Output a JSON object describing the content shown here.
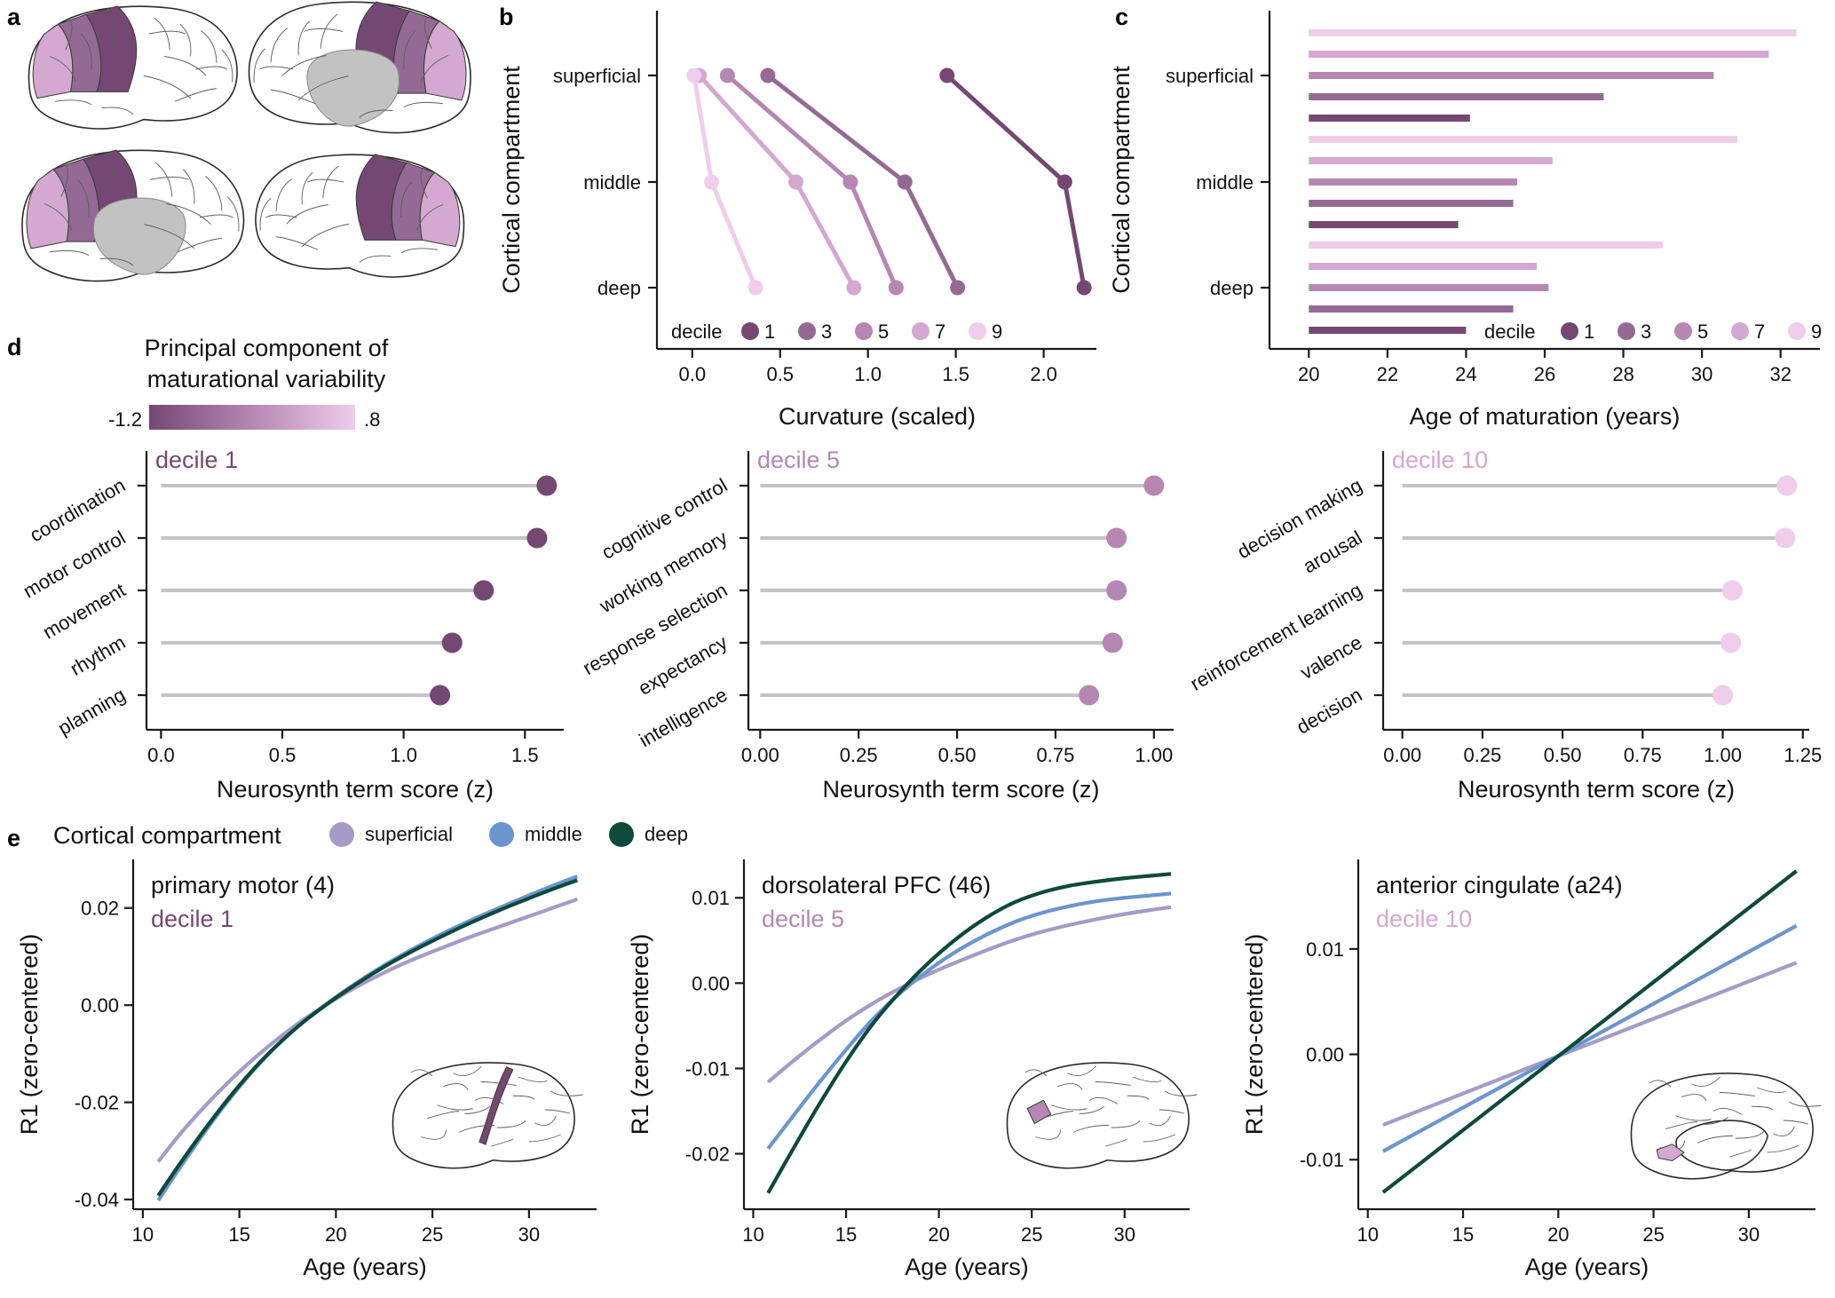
{
  "colors": {
    "dec1": "#744872",
    "dec3": "#946a94",
    "dec5": "#b687b2",
    "dec7": "#d4a8d0",
    "dec9": "#efcdeb",
    "superficial": "#a49bc7",
    "middle": "#6b95cf",
    "deep": "#0d4a3b",
    "stem": "#c4c4c4",
    "grey": "#bdbdbd"
  },
  "panel_labels": {
    "a": "a",
    "b": "b",
    "c": "c",
    "d": "d",
    "e": "e"
  },
  "panel_a": {
    "colorbar_title_line1": "Principal component of",
    "colorbar_title_line2": "maturational variability",
    "colorbar_min": "-1.2",
    "colorbar_max": ".8"
  },
  "chart_data": [
    {
      "id": "b",
      "type": "line",
      "xlabel": "Curvature (scaled)",
      "ylabel": "Cortical compartment",
      "categories": [
        "superficial",
        "middle",
        "deep"
      ],
      "xlim": [
        -0.1,
        2.3
      ],
      "xticks": [
        0.0,
        0.5,
        1.0,
        1.5,
        2.0
      ],
      "xtick_labels": [
        "0.0",
        "0.5",
        "1.0",
        "1.5",
        "2.0"
      ],
      "legend_title": "decile",
      "series": [
        {
          "name": "1",
          "values": [
            1.45,
            2.12,
            2.23
          ]
        },
        {
          "name": "3",
          "values": [
            0.43,
            1.21,
            1.51
          ]
        },
        {
          "name": "5",
          "values": [
            0.2,
            0.9,
            1.16
          ]
        },
        {
          "name": "7",
          "values": [
            0.04,
            0.59,
            0.92
          ]
        },
        {
          "name": "9",
          "values": [
            0.01,
            0.11,
            0.36
          ]
        }
      ]
    },
    {
      "id": "c",
      "type": "bar",
      "xlabel": "Age of maturation (years)",
      "ylabel": "Cortical compartment",
      "categories": [
        "superficial",
        "middle",
        "deep"
      ],
      "xlim": [
        19,
        33
      ],
      "xticks": [
        20,
        22,
        24,
        26,
        28,
        30,
        32
      ],
      "legend_title": "decile",
      "bar_base": 20,
      "series": [
        {
          "name": "9",
          "values": [
            32.4,
            30.9,
            29.0
          ]
        },
        {
          "name": "7",
          "values": [
            31.7,
            26.2,
            25.8
          ]
        },
        {
          "name": "5",
          "values": [
            30.3,
            25.3,
            26.1
          ]
        },
        {
          "name": "3",
          "values": [
            27.5,
            25.2,
            25.2
          ]
        },
        {
          "name": "1",
          "values": [
            24.1,
            23.8,
            24.0
          ]
        }
      ]
    },
    {
      "id": "d1",
      "type": "lollipop",
      "title": "decile 1",
      "xlabel": "Neurosynth term score (z)",
      "terms": [
        "coordination",
        "motor control",
        "movement",
        "rhythm",
        "planning"
      ],
      "values": [
        1.59,
        1.55,
        1.33,
        1.2,
        1.15
      ],
      "xlim": [
        -0.06,
        1.66
      ],
      "xticks": [
        0.0,
        0.5,
        1.0,
        1.5
      ],
      "xtick_labels": [
        "0.0",
        "0.5",
        "1.0",
        "1.5"
      ]
    },
    {
      "id": "d5",
      "type": "lollipop",
      "title": "decile 5",
      "xlabel": "Neurosynth term score (z)",
      "terms": [
        "cognitive control",
        "working memory",
        "response selection",
        "expectancy",
        "intelligence"
      ],
      "values": [
        1.0,
        0.905,
        0.905,
        0.895,
        0.835
      ],
      "xlim": [
        -0.03,
        1.05
      ],
      "xticks": [
        0.0,
        0.25,
        0.5,
        0.75,
        1.0
      ],
      "xtick_labels": [
        "0.00",
        "0.25",
        "0.50",
        "0.75",
        "1.00"
      ]
    },
    {
      "id": "d10",
      "type": "lollipop",
      "title": "decile 10",
      "xlabel": "Neurosynth term score (z)",
      "terms": [
        "decision making",
        "arousal",
        "reinforcement learning",
        "valence",
        "decision"
      ],
      "values": [
        1.2,
        1.195,
        1.03,
        1.025,
        1.0
      ],
      "xlim": [
        -0.06,
        1.27
      ],
      "xticks": [
        0.0,
        0.25,
        0.5,
        0.75,
        1.0,
        1.25
      ],
      "xtick_labels": [
        "0.00",
        "0.25",
        "0.50",
        "0.75",
        "1.00",
        "1.25"
      ]
    },
    {
      "id": "e1",
      "type": "line",
      "title": "primary motor (4)",
      "subtitle": "decile 1",
      "xlabel": "Age (years)",
      "ylabel": "R1 (zero-centered)",
      "xlim": [
        9.5,
        33.5
      ],
      "ylim": [
        -0.042,
        0.03
      ],
      "xticks": [
        10,
        15,
        20,
        25,
        30
      ],
      "yticks": [
        -0.04,
        -0.02,
        0.0,
        0.02
      ],
      "ytick_labels": [
        "-0.04",
        "-0.02",
        "0.00",
        "0.02"
      ],
      "x": [
        10.8,
        12,
        13.5,
        15,
        16.5,
        18,
        19.5,
        21,
        22.5,
        24,
        25.5,
        27,
        28.5,
        30,
        31.5,
        32.5
      ],
      "series": [
        {
          "name": "deep",
          "values": [
            -0.0392,
            -0.0322,
            -0.024,
            -0.0165,
            -0.01,
            -0.0045,
            0.0001,
            0.0042,
            0.0079,
            0.0112,
            0.0142,
            0.017,
            0.0196,
            0.022,
            0.0243,
            0.0257
          ]
        },
        {
          "name": "middle",
          "values": [
            -0.0402,
            -0.033,
            -0.0245,
            -0.0168,
            -0.0101,
            -0.0045,
            0.0002,
            0.0044,
            0.0082,
            0.0116,
            0.0147,
            0.0175,
            0.0201,
            0.0226,
            0.025,
            0.0265
          ]
        },
        {
          "name": "superficial",
          "values": [
            -0.0322,
            -0.0262,
            -0.0196,
            -0.0137,
            -0.0085,
            -0.0039,
            0.0001,
            0.0036,
            0.0067,
            0.0094,
            0.0118,
            0.0141,
            0.0162,
            0.0183,
            0.0204,
            0.0218
          ]
        }
      ]
    },
    {
      "id": "e5",
      "type": "line",
      "title": "dorsolateral PFC (46)",
      "subtitle": "decile 5",
      "xlabel": "Age (years)",
      "ylabel": "R1 (zero-centered)",
      "xlim": [
        9.5,
        33.5
      ],
      "ylim": [
        -0.0265,
        0.0145
      ],
      "xticks": [
        10,
        15,
        20,
        25,
        30
      ],
      "yticks": [
        -0.02,
        -0.01,
        0.0,
        0.01
      ],
      "ytick_labels": [
        "-0.02",
        "-0.01",
        "0.00",
        "0.01"
      ],
      "x": [
        10.8,
        12,
        13.5,
        15,
        16.5,
        18,
        19.5,
        21,
        22.5,
        24,
        25.5,
        27,
        28.5,
        30,
        31.5,
        32.5
      ],
      "series": [
        {
          "name": "deep",
          "values": [
            -0.0246,
            -0.02,
            -0.0144,
            -0.0092,
            -0.0046,
            -0.0008,
            0.0025,
            0.0053,
            0.0076,
            0.0094,
            0.0106,
            0.0114,
            0.0119,
            0.0123,
            0.0126,
            0.0128
          ]
        },
        {
          "name": "middle",
          "values": [
            -0.0194,
            -0.016,
            -0.0118,
            -0.0078,
            -0.0041,
            -0.001,
            0.0016,
            0.0038,
            0.0056,
            0.0071,
            0.0082,
            0.009,
            0.0096,
            0.01,
            0.0103,
            0.0105
          ]
        },
        {
          "name": "superficial",
          "values": [
            -0.0116,
            -0.0094,
            -0.0068,
            -0.0044,
            -0.0023,
            -0.0005,
            0.0011,
            0.0025,
            0.0038,
            0.005,
            0.006,
            0.0068,
            0.0075,
            0.0081,
            0.0086,
            0.0089
          ]
        }
      ]
    },
    {
      "id": "e10",
      "type": "line",
      "title": "anterior cingulate (a24)",
      "subtitle": "decile 10",
      "xlabel": "Age (years)",
      "ylabel": "R1 (zero-centered)",
      "xlim": [
        9.5,
        33.5
      ],
      "ylim": [
        -0.0147,
        0.0185
      ],
      "xticks": [
        10,
        15,
        20,
        25,
        30
      ],
      "yticks": [
        -0.01,
        0.0,
        0.01
      ],
      "ytick_labels": [
        "-0.01",
        "0.00",
        "0.01"
      ],
      "x": [
        10.8,
        32.5
      ],
      "series": [
        {
          "name": "deep",
          "values": [
            -0.0131,
            0.0174
          ]
        },
        {
          "name": "middle",
          "values": [
            -0.0092,
            0.0122
          ]
        },
        {
          "name": "superficial",
          "values": [
            -0.0067,
            0.0087
          ]
        }
      ]
    }
  ],
  "legend_e": {
    "title": "Cortical compartment",
    "items": [
      "superficial",
      "middle",
      "deep"
    ]
  }
}
